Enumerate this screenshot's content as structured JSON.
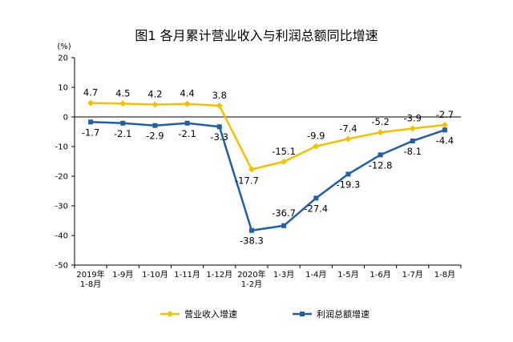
{
  "chart_data": {
    "type": "line",
    "title": "图1 各月累计营业收入与利润总额同比增速",
    "unit": "(%)",
    "categories": [
      [
        "2019年",
        "1-8月"
      ],
      [
        "1-9月"
      ],
      [
        "1-10月"
      ],
      [
        "1-11月"
      ],
      [
        "1-12月"
      ],
      [
        "2020年",
        "1-2月"
      ],
      [
        "1-3月"
      ],
      [
        "1-4月"
      ],
      [
        "1-5月"
      ],
      [
        "1-6月"
      ],
      [
        "1-7月"
      ],
      [
        "1-8月"
      ]
    ],
    "ylim": [
      -50,
      20
    ],
    "yticks": [
      20,
      10,
      0,
      -10,
      -20,
      -30,
      -40,
      -50
    ],
    "series": [
      {
        "name": "营业收入增速",
        "color": "#F5C000",
        "marker": "diamond",
        "values": [
          4.7,
          4.5,
          4.2,
          4.4,
          3.8,
          -17.7,
          -15.1,
          -9.9,
          -7.4,
          -5.2,
          -3.9,
          -2.7
        ],
        "labels": [
          "4.7",
          "4.5",
          "4.2",
          "4.4",
          "3.8",
          "-17.7",
          "-15.1",
          "-9.9",
          "-7.4",
          "-5.2",
          "-3.9",
          "-2.7"
        ]
      },
      {
        "name": "利润总额增速",
        "color": "#1F5FA8",
        "marker": "square",
        "values": [
          -1.7,
          -2.1,
          -2.9,
          -2.1,
          -3.3,
          -38.3,
          -36.7,
          -27.4,
          -19.3,
          -12.8,
          -8.1,
          -4.4
        ],
        "labels": [
          "-1.7",
          "-2.1",
          "-2.9",
          "-2.1",
          "-3.3",
          "-38.3",
          "-36.7",
          "-27.4",
          "-19.3",
          "-12.8",
          "-8.1",
          "-4.4"
        ]
      }
    ],
    "legend": "bottom"
  }
}
